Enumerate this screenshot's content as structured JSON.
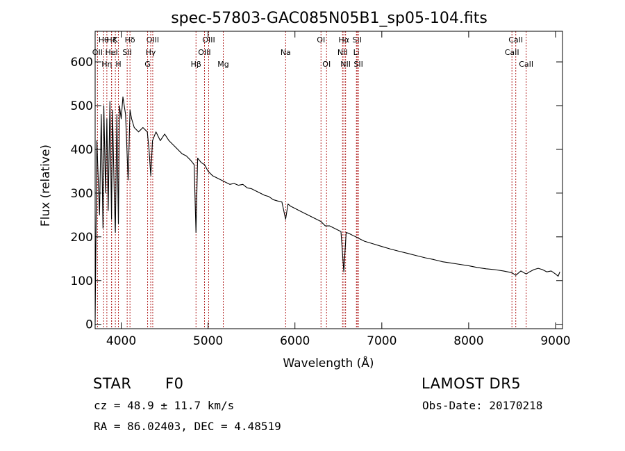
{
  "chart_data": {
    "type": "line",
    "title": "spec-57803-GAC085N05B1_sp05-104.fits",
    "xlabel": "Wavelength (Å)",
    "ylabel": "Flux (relative)",
    "xlim": [
      3700,
      9080
    ],
    "ylim": [
      -10,
      670
    ],
    "x_ticks": [
      4000,
      5000,
      6000,
      7000,
      8000,
      9000
    ],
    "y_ticks": [
      0,
      100,
      200,
      300,
      400,
      500,
      600
    ],
    "grid": false,
    "line_color": "#000000",
    "marker_color": "#b22222",
    "series": [
      {
        "x": [
          3700,
          3720,
          3750,
          3770,
          3790,
          3800,
          3820,
          3835,
          3850,
          3870,
          3889,
          3900,
          3920,
          3933,
          3950,
          3968,
          3980,
          4000,
          4020,
          4050,
          4080,
          4101,
          4120,
          4150,
          4200,
          4250,
          4300,
          4320,
          4340,
          4360,
          4380,
          4400,
          4450,
          4500,
          4550,
          4600,
          4650,
          4700,
          4750,
          4800,
          4840,
          4861,
          4880,
          4920,
          4960,
          5000,
          5050,
          5100,
          5150,
          5200,
          5250,
          5300,
          5350,
          5400,
          5450,
          5500,
          5550,
          5600,
          5650,
          5700,
          5750,
          5800,
          5850,
          5893,
          5920,
          5950,
          6000,
          6050,
          6100,
          6150,
          6200,
          6250,
          6300,
          6350,
          6400,
          6450,
          6500,
          6530,
          6563,
          6590,
          6620,
          6650,
          6700,
          6750,
          6800,
          6900,
          7000,
          7100,
          7200,
          7300,
          7400,
          7500,
          7600,
          7700,
          7800,
          7900,
          8000,
          8100,
          8200,
          8300,
          8400,
          8498,
          8542,
          8600,
          8662,
          8700,
          8750,
          8800,
          8850,
          8900,
          8950,
          9000,
          9030,
          9050
        ],
        "y": [
          5,
          420,
          250,
          480,
          220,
          500,
          300,
          470,
          260,
          510,
          240,
          490,
          300,
          210,
          480,
          230,
          500,
          470,
          520,
          480,
          330,
          490,
          470,
          450,
          440,
          450,
          440,
          400,
          340,
          420,
          430,
          440,
          420,
          435,
          420,
          410,
          400,
          390,
          385,
          375,
          365,
          210,
          380,
          370,
          365,
          350,
          340,
          335,
          330,
          325,
          320,
          322,
          318,
          320,
          312,
          310,
          305,
          300,
          295,
          292,
          285,
          282,
          280,
          240,
          275,
          270,
          265,
          260,
          255,
          250,
          245,
          240,
          235,
          225,
          225,
          220,
          215,
          212,
          120,
          210,
          208,
          205,
          200,
          195,
          190,
          184,
          178,
          172,
          167,
          162,
          157,
          152,
          148,
          143,
          140,
          137,
          134,
          130,
          127,
          125,
          122,
          118,
          112,
          122,
          115,
          120,
          125,
          128,
          125,
          120,
          122,
          115,
          110,
          120
        ]
      }
    ],
    "line_markers": [
      {
        "label": "OII",
        "x": 3727,
        "row": 1
      },
      {
        "label": "Hθ",
        "x": 3798,
        "row": 0
      },
      {
        "label": "Hη",
        "x": 3835,
        "row": 2
      },
      {
        "label": "Hζ",
        "x": 3889,
        "row": 0
      },
      {
        "label": "HeI",
        "x": 3889,
        "row": 1
      },
      {
        "label": "K",
        "x": 3933,
        "row": 0
      },
      {
        "label": "H",
        "x": 3968,
        "row": 2
      },
      {
        "label": "Hδ",
        "x": 4101,
        "row": 0
      },
      {
        "label": "SII",
        "x": 4069,
        "row": 1
      },
      {
        "label": "OIII",
        "x": 4363,
        "row": 0
      },
      {
        "label": "Hγ",
        "x": 4340,
        "row": 1
      },
      {
        "label": "G",
        "x": 4304,
        "row": 2
      },
      {
        "label": "Hβ",
        "x": 4861,
        "row": 2
      },
      {
        "label": "OIII",
        "x": 5007,
        "row": 0
      },
      {
        "label": "OIII",
        "x": 4959,
        "row": 1
      },
      {
        "label": "Mg",
        "x": 5175,
        "row": 2
      },
      {
        "label": "Na",
        "x": 5893,
        "row": 1
      },
      {
        "label": "OI",
        "x": 6300,
        "row": 0
      },
      {
        "label": "OI",
        "x": 6364,
        "row": 2
      },
      {
        "label": "Hα",
        "x": 6563,
        "row": 0
      },
      {
        "label": "NII",
        "x": 6548,
        "row": 1
      },
      {
        "label": "NII",
        "x": 6583,
        "row": 2
      },
      {
        "label": "SII",
        "x": 6716,
        "row": 0
      },
      {
        "label": "Li",
        "x": 6708,
        "row": 1
      },
      {
        "label": "SII",
        "x": 6731,
        "row": 2
      },
      {
        "label": "CaII",
        "x": 8542,
        "row": 0
      },
      {
        "label": "CaII",
        "x": 8498,
        "row": 1
      },
      {
        "label": "CaII",
        "x": 8662,
        "row": 2
      }
    ]
  },
  "info": {
    "class_label": "STAR",
    "subclass": "F0",
    "survey": "LAMOST DR5",
    "cz": "cz = 48.9 ± 11.7 km/s",
    "obs_date": "Obs-Date: 20170218",
    "radec": "RA =  86.02403, DEC =   4.48519"
  }
}
